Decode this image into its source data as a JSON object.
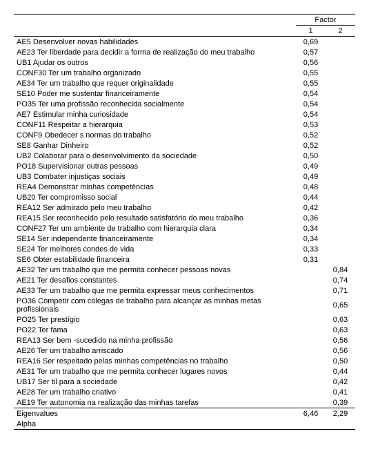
{
  "header": {
    "factor_label": "Factor",
    "col1": "1",
    "col2": "2"
  },
  "rows": [
    {
      "label": "AE5 Desenvolver novas habilidades",
      "f1": "0,69",
      "f2": ""
    },
    {
      "label": "AE23 Ter liberdade para decidir a forma de realização do meu trabalho",
      "f1": "0,57",
      "f2": ""
    },
    {
      "label": "UB1 Ajudar os outros",
      "f1": "0,56",
      "f2": ""
    },
    {
      "label": "CONF30 Ter um trabalho organizado",
      "f1": "0,55",
      "f2": ""
    },
    {
      "label": "AE34 Ter um trabalho que requer originalidade",
      "f1": "0,55",
      "f2": ""
    },
    {
      "label": "SE10 Poder me sustentar financeiramente",
      "f1": "0,54",
      "f2": ""
    },
    {
      "label": "PO35 Ter uma profissão reconhecida socialmente",
      "f1": "0,54",
      "f2": ""
    },
    {
      "label": "AE7 Estimular minha curiosidade",
      "f1": "0,54",
      "f2": ""
    },
    {
      "label": "CONF11 Respeitar a hierarquia",
      "f1": "0,53",
      "f2": ""
    },
    {
      "label": "CONF9 Obedecer s normas do trabalho",
      "f1": "0,52",
      "f2": ""
    },
    {
      "label": "SE8 Ganhar Dinheiro",
      "f1": "0,52",
      "f2": ""
    },
    {
      "label": "UB2 Colaborar para o desenvolvimento da sociedade",
      "f1": "0,50",
      "f2": ""
    },
    {
      "label": "PO18 Supervisionar outras pessoas",
      "f1": "0,49",
      "f2": ""
    },
    {
      "label": "UB3 Combater injustiças sociais",
      "f1": "0,49",
      "f2": ""
    },
    {
      "label": "REA4 Demonstrar minhas competências",
      "f1": "0,48",
      "f2": ""
    },
    {
      "label": "UB20 Ter compromisso social",
      "f1": "0,44",
      "f2": ""
    },
    {
      "label": "REA12 Ser admirado pelo meu trabalho",
      "f1": "0,42",
      "f2": ""
    },
    {
      "label": "REA15 Ser reconhecido pelo resultado satisfatório do meu trabalho",
      "f1": "0,36",
      "f2": ""
    },
    {
      "label": "CONF27 Ter um ambiente de trabalho com hierarquia clara",
      "f1": "0,34",
      "f2": ""
    },
    {
      "label": "SE14 Ser independente financeiramente",
      "f1": "0,34",
      "f2": ""
    },
    {
      "label": "SE24 Ter melhores condes de vida",
      "f1": "0,33",
      "f2": ""
    },
    {
      "label": "SE6 Obter estabilidade financeira",
      "f1": "0,31",
      "f2": ""
    },
    {
      "label": "AE32 Ter um trabalho que me permita conhecer pessoas novas",
      "f1": "",
      "f2": "0,84"
    },
    {
      "label": "AE21 Ter desafios constantes",
      "f1": "",
      "f2": "0,74"
    },
    {
      "label": "AE33 Ter um trabalho que me permita expressar meus conhecimentos",
      "f1": "",
      "f2": "0,71"
    },
    {
      "label": "PO36 Competir com colegas de trabalho para alcançar as minhas metas profissionais",
      "f1": "",
      "f2": "0,65"
    },
    {
      "label": "PO25 Ter prestígio",
      "f1": "",
      "f2": "0,63"
    },
    {
      "label": "PO22 Ter fama",
      "f1": "",
      "f2": "0,63"
    },
    {
      "label": "REA13 Ser bem -sucedido na minha profissão",
      "f1": "",
      "f2": "0,56"
    },
    {
      "label": "AE26 Ter um trabalho arriscado",
      "f1": "",
      "f2": "0,56"
    },
    {
      "label": "REA16 Ser respeitado pelas minhas competências no trabalho",
      "f1": "",
      "f2": "0,50"
    },
    {
      "label": "AE31 Ter um trabalho que me permita conhecer lugares novos",
      "f1": "",
      "f2": "0,44"
    },
    {
      "label": "UB17 Ser til para a sociedade",
      "f1": "",
      "f2": "0,42"
    },
    {
      "label": "AE28 Ter um trabalho criativo",
      "f1": "",
      "f2": "0,41"
    },
    {
      "label": "AE19 Ter autonomia na realização das minhas tarefas",
      "f1": "",
      "f2": "0,39"
    }
  ],
  "footer": {
    "eigen_label": "Eigenvalues",
    "eigen_f1": "6,46",
    "eigen_f2": "2,29",
    "alpha_label": "Alpha",
    "alpha_f1": "",
    "alpha_f2": ""
  }
}
